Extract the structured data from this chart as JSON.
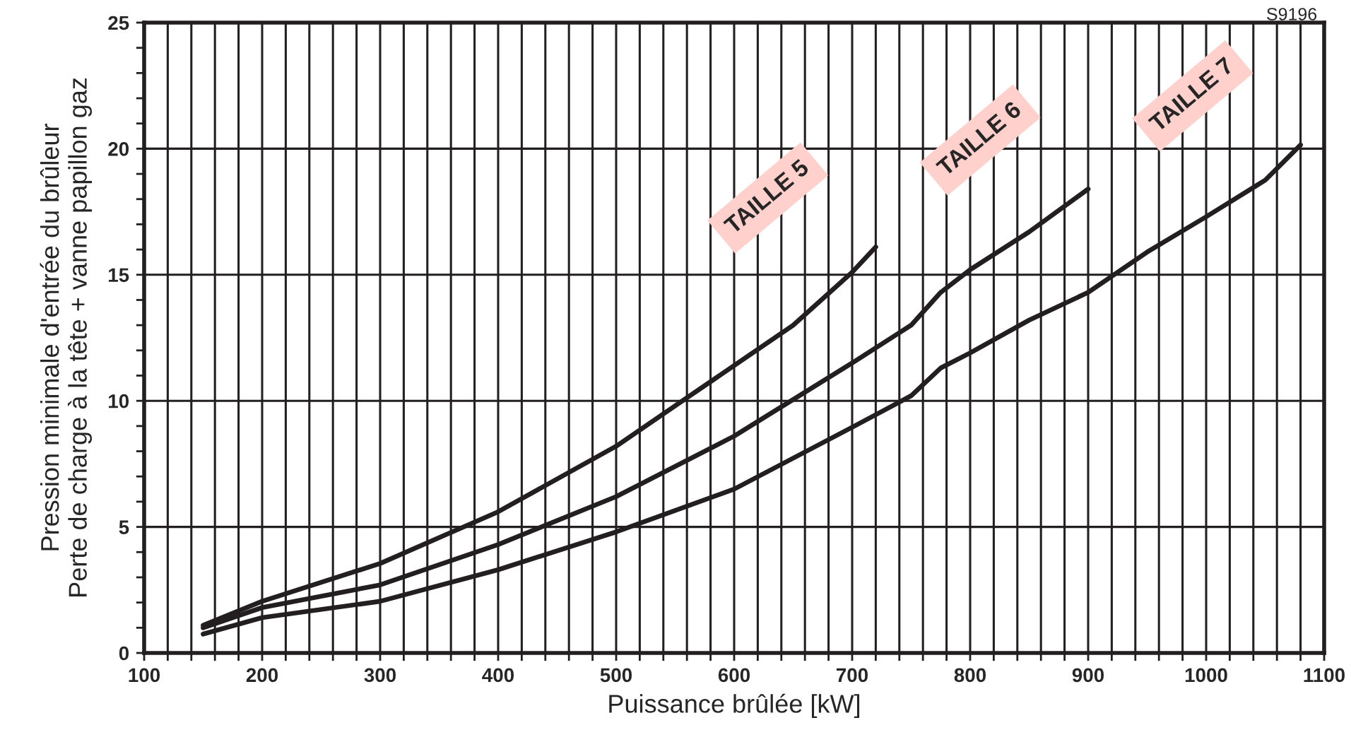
{
  "chart_data": {
    "type": "line",
    "xlabel": "Puissance brûlée [kW]",
    "ylabel": "Pression minimale d'entrée du brûleur\nPerte de charge à la tête + vanne papillon gaz",
    "annotations": [
      "S9196"
    ],
    "xlim": [
      100,
      1100
    ],
    "ylim": [
      0,
      25
    ],
    "xticks": [
      100,
      {
        "value": 120,
        "label": null
      },
      {
        "value": 140,
        "label": null
      },
      {
        "value": 160,
        "label": null
      },
      {
        "value": 180,
        "label": null
      },
      200,
      {
        "value": 220,
        "label": null
      },
      {
        "value": 240,
        "label": null
      },
      {
        "value": 260,
        "label": null
      },
      {
        "value": 280,
        "label": null
      },
      300,
      {
        "value": 320,
        "label": null
      },
      {
        "value": 340,
        "label": null
      },
      {
        "value": 360,
        "label": null
      },
      {
        "value": 380,
        "label": null
      },
      400,
      {
        "value": 420,
        "label": null
      },
      {
        "value": 440,
        "label": null
      },
      {
        "value": 460,
        "label": null
      },
      {
        "value": 480,
        "label": null
      },
      500,
      {
        "value": 520,
        "label": null
      },
      {
        "value": 540,
        "label": null
      },
      {
        "value": 560,
        "label": null
      },
      {
        "value": 580,
        "label": null
      },
      600,
      {
        "value": 620,
        "label": null
      },
      {
        "value": 640,
        "label": null
      },
      {
        "value": 660,
        "label": null
      },
      {
        "value": 680,
        "label": null
      },
      700,
      {
        "value": 720,
        "label": null
      },
      {
        "value": 740,
        "label": null
      },
      {
        "value": 760,
        "label": null
      },
      {
        "value": 780,
        "label": null
      },
      800,
      {
        "value": 820,
        "label": null
      },
      {
        "value": 840,
        "label": null
      },
      {
        "value": 860,
        "label": null
      },
      {
        "value": 880,
        "label": null
      },
      900,
      {
        "value": 920,
        "label": null
      },
      {
        "value": 940,
        "label": null
      },
      {
        "value": 960,
        "label": null
      },
      {
        "value": 980,
        "label": null
      },
      1000,
      {
        "value": 1020,
        "label": null
      },
      {
        "value": 1040,
        "label": null
      },
      {
        "value": 1060,
        "label": null
      },
      {
        "value": 1080,
        "label": null
      },
      1100
    ],
    "yticks": [
      0,
      {
        "value": 1,
        "label": null
      },
      {
        "value": 2,
        "label": null
      },
      {
        "value": 3,
        "label": null
      },
      {
        "value": 4,
        "label": null
      },
      5,
      {
        "value": 6,
        "label": null
      },
      {
        "value": 7,
        "label": null
      },
      {
        "value": 8,
        "label": null
      },
      {
        "value": 9,
        "label": null
      },
      10,
      {
        "value": 11,
        "label": null
      },
      {
        "value": 12,
        "label": null
      },
      {
        "value": 13,
        "label": null
      },
      {
        "value": 14,
        "label": null
      },
      15,
      {
        "value": 16,
        "label": null
      },
      {
        "value": 17,
        "label": null
      },
      {
        "value": 18,
        "label": null
      },
      {
        "value": 19,
        "label": null
      },
      20,
      {
        "value": 21,
        "label": null
      },
      {
        "value": 22,
        "label": null
      },
      {
        "value": 23,
        "label": null
      },
      {
        "value": 24,
        "label": null
      },
      25
    ],
    "grid": true,
    "line_style": "solid",
    "series": [
      {
        "name": "TAILLE 5",
        "color": "#231f20",
        "x": [
          150,
          200,
          300,
          400,
          500,
          550,
          600,
          650,
          700,
          720
        ],
        "values": [
          1.1,
          2.05,
          3.55,
          5.6,
          8.2,
          9.8,
          11.4,
          13.0,
          15.1,
          16.1
        ]
      },
      {
        "name": "TAILLE 6",
        "color": "#231f20",
        "x": [
          150,
          200,
          300,
          400,
          500,
          600,
          700,
          750,
          775,
          800,
          850,
          900
        ],
        "values": [
          1.0,
          1.8,
          2.7,
          4.3,
          6.2,
          8.6,
          11.5,
          13.0,
          14.3,
          15.2,
          16.7,
          18.4
        ]
      },
      {
        "name": "TAILLE 7",
        "color": "#231f20",
        "x": [
          150,
          200,
          300,
          400,
          500,
          600,
          700,
          750,
          775,
          800,
          850,
          900,
          950,
          1000,
          1050,
          1080
        ],
        "values": [
          0.75,
          1.4,
          2.05,
          3.3,
          4.8,
          6.5,
          8.95,
          10.2,
          11.3,
          11.9,
          13.2,
          14.3,
          15.9,
          17.3,
          18.75,
          20.15
        ]
      }
    ]
  }
}
